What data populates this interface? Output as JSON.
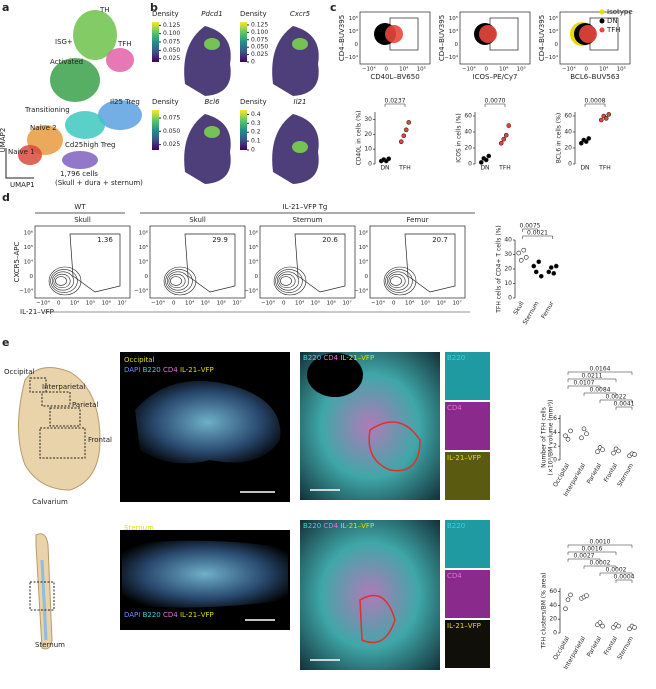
{
  "panel_a": {
    "letter": "a",
    "clusters": [
      "TH",
      "ISG+",
      "TFH",
      "Activated",
      "Il25 Treg",
      "Transitioning",
      "Naive 2",
      "Naive 1",
      "Cd25high Treg"
    ],
    "cells": "1,796 cells",
    "tissues": "(Skull + dura + sternum)",
    "axis_x": "UMAP1",
    "axis_y": "UMAP2"
  },
  "panel_b": {
    "letter": "b",
    "plots": [
      {
        "gene": "Pdcd1",
        "legend": "Density",
        "clim": [
          0.015,
          0.135
        ],
        "ticks": [
          0.125,
          {
            "value": 0.1,
            "label": "0.100"
          },
          0.075,
          {
            "value": 0.05,
            "label": "0.050"
          },
          0.025
        ]
      },
      {
        "gene": "Cxcr5",
        "legend": "Density",
        "clim": [
          0,
          0.135
        ],
        "ticks": [
          0.125,
          {
            "value": 0.1,
            "label": "0.100"
          },
          0.075,
          {
            "value": 0.05,
            "label": "0.050"
          },
          0.025,
          0
        ]
      },
      {
        "gene": "Bcl6",
        "legend": "Density",
        "clim": [
          0.015,
          0.09
        ],
        "ticks": [
          0.075,
          {
            "value": 0.05,
            "label": "0.050"
          },
          0.025
        ]
      },
      {
        "gene": "Il21",
        "legend": "Density",
        "clim": [
          0,
          0.45
        ],
        "ticks": [
          0.4,
          0.3,
          0.2,
          0.1,
          0
        ]
      }
    ]
  },
  "panel_c": {
    "letter": "c",
    "flow": {
      "ylabel": "CD4–BUV395",
      "x_ticks": [
        "−10⁴",
        "0",
        "10⁴",
        "10⁵"
      ],
      "y_ticks": [
        "10⁵",
        "10⁴",
        "0",
        "−10⁴"
      ],
      "plots": [
        {
          "xlabel": "CD40L–BV650"
        },
        {
          "xlabel": "ICOS–PE/Cy7"
        },
        {
          "xlabel": "BCL6–BUV563"
        }
      ]
    },
    "legend": [
      {
        "name": "Isotype",
        "color": "#e8dc00"
      },
      {
        "name": "DN",
        "color": "#000000"
      },
      {
        "name": "TFH",
        "color": "#e8463c"
      }
    ],
    "charts": [
      {
        "ylabel": "CD40L in cells (%)",
        "ylim": [
          0,
          35
        ],
        "yticks": [
          0,
          10,
          20,
          30
        ],
        "categories": [
          "DN",
          "TFH"
        ],
        "colors": [
          "#000000",
          "#e8463c"
        ],
        "points": [
          [
            2,
            3,
            2,
            3.5
          ],
          [
            15,
            19,
            23,
            28
          ]
        ],
        "pvalues": [
          "0.0237"
        ]
      },
      {
        "ylabel": "ICOS in cells (%)",
        "ylim": [
          0,
          65
        ],
        "yticks": [
          0,
          20,
          40,
          60
        ],
        "categories": [
          "DN",
          "TFH"
        ],
        "colors": [
          "#000000",
          "#e8463c"
        ],
        "points": [
          [
            2,
            7,
            5,
            10
          ],
          [
            26,
            31,
            36,
            48
          ]
        ],
        "pvalues": [
          "0.0070"
        ]
      },
      {
        "ylabel": "BCL6 in cells (%)",
        "ylim": [
          0,
          65
        ],
        "yticks": [
          0,
          20,
          40,
          60
        ],
        "categories": [
          "DN",
          "TFH"
        ],
        "colors": [
          "#000000",
          "#e8463c"
        ],
        "points": [
          [
            26,
            30,
            28,
            32
          ],
          [
            55,
            60,
            57,
            62
          ]
        ],
        "pvalues": [
          "0.0008"
        ]
      }
    ]
  },
  "panel_d": {
    "letter": "d",
    "groups": [
      "WT",
      "IL-21–VFP Tg"
    ],
    "flow": {
      "ylabel": "CXCR5–APC",
      "xlabel": "IL-21–VFP",
      "x_ticks": [
        "−10⁴",
        "0",
        "10⁴",
        "10⁵",
        "10⁶",
        "10⁷"
      ],
      "y_ticks": [
        "10⁶",
        "10⁵",
        "10⁴",
        "0",
        "−10⁴"
      ],
      "plots": [
        {
          "tissue": "Skull",
          "gate": "1.36"
        },
        {
          "tissue": "Skull",
          "gate": "29.9"
        },
        {
          "tissue": "Sternum",
          "gate": "20.6"
        },
        {
          "tissue": "Femur",
          "gate": "20.7"
        }
      ]
    },
    "chart": {
      "ylabel": "TFH cells of CD4+ T cells (%)",
      "ylim": [
        0,
        40
      ],
      "yticks": [
        0,
        10,
        20,
        30,
        40
      ],
      "categories": [
        "Skull",
        "Sternum",
        "Femur"
      ],
      "colors": [
        "#ffffff",
        "#000000",
        "#000000"
      ],
      "points": [
        [
          31,
          26,
          33,
          28
        ],
        [
          22,
          18,
          25,
          15
        ],
        [
          18,
          21,
          17,
          22
        ]
      ],
      "pvalues": [
        "0.0075",
        "0.0021"
      ]
    }
  },
  "panel_e": {
    "letter": "e",
    "row1": {
      "regions": [
        "Occipital",
        "Interparietal",
        "Parietal",
        "Frontal"
      ],
      "bone": "Calvarium",
      "image_title": "Occipital",
      "stain": [
        "DAPI",
        "B220",
        "CD4",
        "IL-21–VFP"
      ],
      "zoom_stain": [
        "B220",
        "CD4",
        "IL-21–VFP"
      ],
      "tiles": [
        "B220",
        "CD4",
        "IL-21–VFP"
      ],
      "chart": {
        "ylabel": "Number of TFH cells",
        "ylabel2": "(×10³/BM volume (mm³))",
        "ylim": [
          0,
          6.5
        ],
        "yticks": [
          0,
          2,
          4,
          6
        ],
        "categories": [
          "Occipital",
          "Interparietal",
          "Parietal",
          "Frontal",
          "Sternum"
        ],
        "colors": [
          "#ffffff",
          "#ffffff",
          "#ffffff",
          "#ffffff",
          "#ffffff"
        ],
        "points": [
          [
            3.5,
            3,
            4.2
          ],
          [
            3.2,
            4.5,
            3.8
          ],
          [
            1.2,
            1.8,
            1.5
          ],
          [
            1,
            1.6,
            1.3
          ],
          [
            0.6,
            0.9,
            0.8
          ]
        ],
        "pvalues": [
          "0.0164",
          "0.0211",
          "0.0107",
          "0.0084",
          "0.0022",
          "0.0041"
        ]
      }
    },
    "row2": {
      "bone": "Sternum",
      "image_title": "Sternum",
      "stain": [
        "DAPI",
        "B220",
        "CD4",
        "IL-21–VFP"
      ],
      "zoom_stain": [
        "B220",
        "CD4",
        "IL-21–VFP"
      ],
      "tiles": [
        "B220",
        "CD4",
        "IL-21–VFP"
      ],
      "chart": {
        "ylabel": "TFH clusters/BM (% area)",
        "ylim": [
          0,
          65
        ],
        "yticks": [
          0,
          20,
          40,
          60
        ],
        "categories": [
          "Occipital",
          "Interparietal",
          "Parietal",
          "Frontal",
          "Sternum"
        ],
        "colors": [
          "#ffffff",
          "#ffffff",
          "#ffffff",
          "#ffffff",
          "#ffffff"
        ],
        "points": [
          [
            35,
            48,
            55
          ],
          [
            50,
            52,
            54
          ],
          [
            12,
            15,
            10
          ],
          [
            8,
            12,
            10
          ],
          [
            6,
            10,
            8
          ]
        ],
        "pvalues": [
          "0.0010",
          "0.0016",
          "0.0027",
          "0.0002",
          "0.0002",
          "0.0004"
        ]
      }
    }
  }
}
